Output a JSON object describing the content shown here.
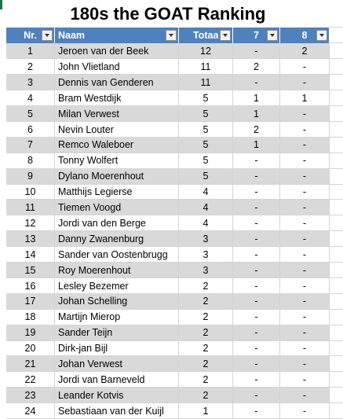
{
  "title": "180s the GOAT Ranking",
  "table": {
    "columns": [
      "Nr.",
      "Naam",
      "Totaal",
      "7",
      "8"
    ],
    "rows": [
      [
        1,
        "Jeroen van der Beek",
        12,
        "-",
        2
      ],
      [
        2,
        "John Vlietland",
        11,
        2,
        "-"
      ],
      [
        3,
        "Dennis van Genderen",
        11,
        "-",
        "-"
      ],
      [
        4,
        "Bram Westdijk",
        5,
        1,
        1
      ],
      [
        5,
        "Milan Verwest",
        5,
        1,
        "-"
      ],
      [
        6,
        "Nevin Louter",
        5,
        2,
        "-"
      ],
      [
        7,
        "Remco Waleboer",
        5,
        1,
        "-"
      ],
      [
        8,
        "Tonny Wolfert",
        5,
        "-",
        "-"
      ],
      [
        9,
        "Dylano Moerenhout",
        5,
        "-",
        "-"
      ],
      [
        10,
        "Matthijs Legierse",
        4,
        "-",
        "-"
      ],
      [
        11,
        "Tiemen Voogd",
        4,
        "-",
        "-"
      ],
      [
        12,
        "Jordi van den Berge",
        4,
        "-",
        "-"
      ],
      [
        13,
        "Danny Zwanenburg",
        3,
        "-",
        "-"
      ],
      [
        14,
        "Sander van Oostenbrugg",
        3,
        "-",
        "-"
      ],
      [
        15,
        "Roy Moerenhout",
        3,
        "-",
        "-"
      ],
      [
        16,
        "Lesley Bezemer",
        2,
        "-",
        "-"
      ],
      [
        17,
        "Johan Schelling",
        2,
        "-",
        "-"
      ],
      [
        18,
        "Martijn Mierop",
        2,
        "-",
        "-"
      ],
      [
        19,
        "Sander Teijn",
        2,
        "-",
        "-"
      ],
      [
        20,
        "Dirk-jan Bijl",
        2,
        "-",
        "-"
      ],
      [
        21,
        "Johan Verwest",
        2,
        "-",
        "-"
      ],
      [
        22,
        "Jordi van Barneveld",
        2,
        "-",
        "-"
      ],
      [
        23,
        "Leander Kotvis",
        2,
        "-",
        "-"
      ],
      [
        24,
        "Sebastiaan van der Kuijl",
        1,
        "-",
        "-"
      ]
    ]
  }
}
